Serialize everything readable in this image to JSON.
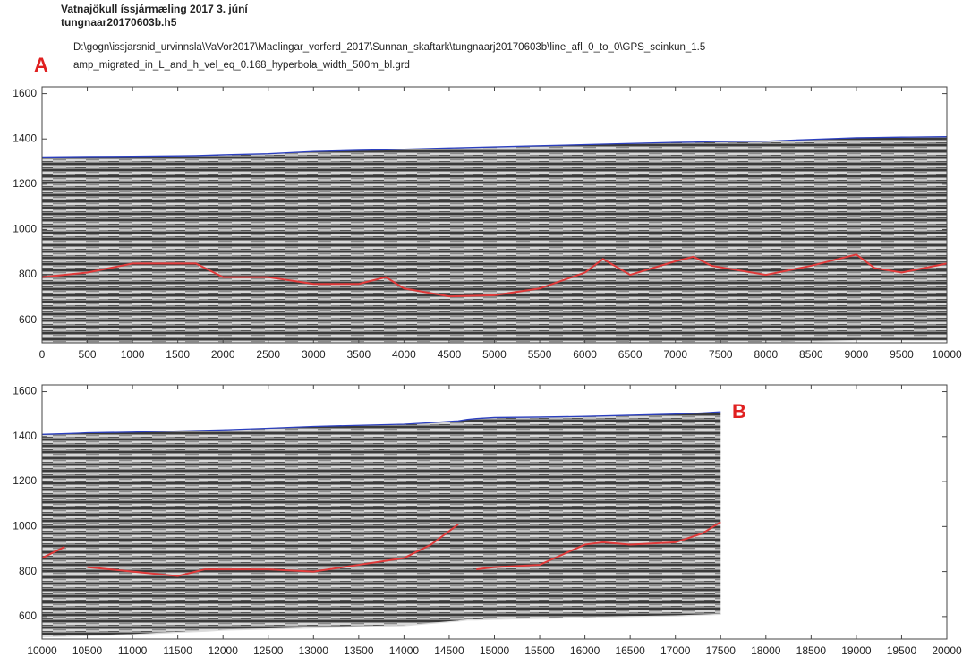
{
  "title": "Vatnajökull íssjármæling 2017 3. júní",
  "file": "tungnaar20170603b.h5",
  "path": "D:\\gogn\\issjarsnid_urvinnsla\\VaVor2017\\Maelingar_vorferd_2017\\Sunnan_skaftark\\tungnaarj20170603b\\line_afl_0_to_0\\GPS_seinkun_1.5",
  "grid_file": "amp_migrated_in_L_and_h_vel_eq_0.168_hyperbola_width_500m_bl.grd",
  "chart_data": [
    {
      "type": "line",
      "annotation": "A",
      "x": [
        0,
        500,
        1000,
        1500,
        1700,
        2000,
        2500,
        3000,
        3500,
        3800,
        4000,
        4500,
        5000,
        5500,
        6000,
        6200,
        6500,
        7000,
        7200,
        7400,
        8000,
        8500,
        9000,
        9200,
        9500,
        10000
      ],
      "series": [
        {
          "color": "#2b3fbf",
          "values": [
            1320,
            1322,
            1323,
            1325,
            1326,
            1330,
            1335,
            1345,
            1350,
            1352,
            1355,
            1360,
            1365,
            1370,
            1375,
            1377,
            1380,
            1385,
            1386,
            1388,
            1390,
            1398,
            1405,
            1406,
            1408,
            1410
          ]
        },
        {
          "color": "#e03a3a",
          "values": [
            790,
            810,
            850,
            850,
            850,
            790,
            790,
            760,
            760,
            790,
            740,
            705,
            710,
            740,
            810,
            870,
            800,
            860,
            880,
            840,
            800,
            840,
            890,
            830,
            810,
            850
          ]
        },
        {
          "color": "#dddddd",
          "values": [
            500,
            500,
            500,
            500,
            500,
            500,
            500,
            500,
            500,
            500,
            500,
            500,
            500,
            500,
            500,
            500,
            500,
            500,
            500,
            500,
            500,
            505,
            510,
            510,
            510,
            510
          ]
        }
      ],
      "xlim": [
        0,
        10000
      ],
      "ylim": [
        500,
        1630
      ],
      "xticks": [
        0,
        500,
        1000,
        1500,
        2000,
        2500,
        3000,
        3500,
        4000,
        4500,
        5000,
        5500,
        6000,
        6500,
        7000,
        7500,
        8000,
        8500,
        9000,
        9500,
        10000
      ],
      "yticks": [
        600,
        800,
        1000,
        1200,
        1400,
        1600
      ]
    },
    {
      "type": "line",
      "annotation": "B",
      "x": [
        10000,
        10250,
        10400,
        10500,
        11000,
        11500,
        11800,
        12000,
        12500,
        13000,
        13500,
        14000,
        14300,
        14600,
        14700,
        14800,
        15000,
        15500,
        16000,
        16200,
        16500,
        17000,
        17300,
        17500
      ],
      "series": [
        {
          "color": "#2b3fbf",
          "values": [
            1410,
            1413,
            1415,
            1417,
            1420,
            1425,
            1428,
            1430,
            1437,
            1445,
            1450,
            1455,
            1462,
            1470,
            1476,
            1480,
            1485,
            1487,
            1490,
            1492,
            1495,
            1500,
            1505,
            1510
          ]
        },
        {
          "color": "#e03a3a",
          "values": [
            860,
            910,
            null,
            820,
            800,
            780,
            810,
            810,
            810,
            800,
            830,
            860,
            920,
            1010,
            null,
            810,
            820,
            830,
            920,
            930,
            920,
            930,
            970,
            1020
          ]
        },
        {
          "color": "#dddddd",
          "values": [
            510,
            512,
            514,
            515,
            520,
            530,
            535,
            540,
            545,
            550,
            555,
            560,
            570,
            580,
            585,
            585,
            588,
            592,
            595,
            597,
            600,
            603,
            607,
            610
          ]
        }
      ],
      "xlim": [
        10000,
        20000
      ],
      "ylim": [
        500,
        1630
      ],
      "xticks": [
        10000,
        10500,
        11000,
        11500,
        12000,
        12500,
        13000,
        13500,
        14000,
        14500,
        15000,
        15500,
        16000,
        16500,
        17000,
        17500,
        18000,
        18500,
        19000,
        19500,
        20000
      ],
      "yticks": [
        600,
        800,
        1000,
        1200,
        1400,
        1600
      ]
    }
  ]
}
